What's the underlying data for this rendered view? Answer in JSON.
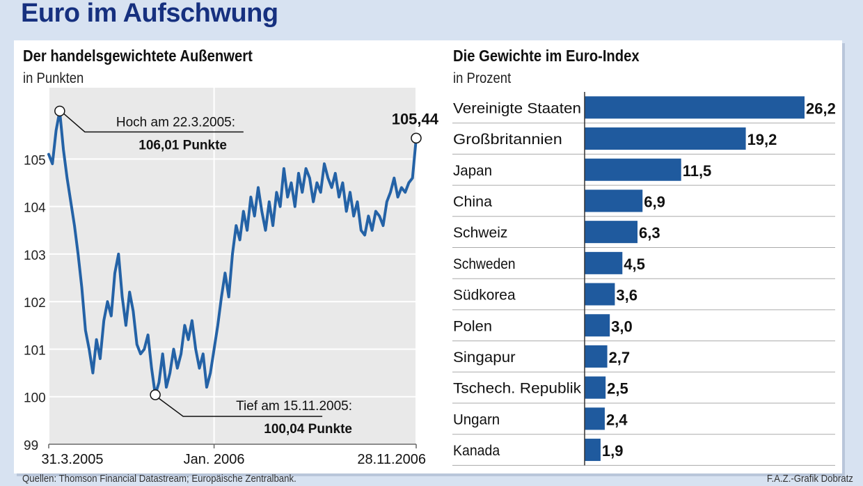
{
  "header": {
    "title": "Euro im Aufschwung"
  },
  "chart_data": [
    {
      "type": "line",
      "title": "Der handelsgewichtete Außenwert",
      "unit": "in Punkten",
      "ylim": [
        99,
        106.5
      ],
      "yticks": [
        "99",
        "100",
        "101",
        "102",
        "103",
        "104",
        "105"
      ],
      "xticks": [
        "31.3.2005",
        "Jan. 2006",
        "28.11.2006"
      ],
      "series": [
        {
          "name": "Außenwert",
          "x": [
            0,
            1,
            2,
            3,
            4,
            5,
            6,
            7,
            8,
            9,
            10,
            11,
            12,
            13,
            14,
            15,
            16,
            17,
            18,
            19,
            20,
            21,
            22,
            23,
            24,
            25,
            26,
            27,
            28,
            29,
            30,
            31,
            32,
            33,
            34,
            35,
            36,
            37,
            38,
            39,
            40,
            41,
            42,
            43,
            44,
            45,
            46,
            47,
            48,
            49,
            50,
            51,
            52,
            53,
            54,
            55,
            56,
            57,
            58,
            59,
            60,
            61,
            62,
            63,
            64,
            65,
            66,
            67,
            68,
            69,
            70,
            71,
            72,
            73,
            74,
            75,
            76,
            77,
            78,
            79,
            80,
            81,
            82,
            83,
            84,
            85,
            86,
            87,
            88,
            89,
            90,
            91,
            92,
            93,
            94,
            95,
            96,
            97,
            98,
            99,
            100
          ],
          "values": [
            105.1,
            104.9,
            105.6,
            106.01,
            105.2,
            104.6,
            104.1,
            103.6,
            103.0,
            102.3,
            101.4,
            101.0,
            100.5,
            101.2,
            100.8,
            101.6,
            102.0,
            101.7,
            102.6,
            103.0,
            102.1,
            101.5,
            102.2,
            101.8,
            101.1,
            100.9,
            101.0,
            101.3,
            100.6,
            100.04,
            100.3,
            100.9,
            100.2,
            100.5,
            101.0,
            100.6,
            100.9,
            101.5,
            101.2,
            101.6,
            101.0,
            100.6,
            100.9,
            100.2,
            100.5,
            101.0,
            101.5,
            102.1,
            102.6,
            102.1,
            103.0,
            103.6,
            103.3,
            103.9,
            103.5,
            104.2,
            103.8,
            104.4,
            103.9,
            103.5,
            104.1,
            103.6,
            104.3,
            104.0,
            104.8,
            104.2,
            104.5,
            104.0,
            104.7,
            104.3,
            104.8,
            104.6,
            104.1,
            104.5,
            104.3,
            104.9,
            104.6,
            104.4,
            104.7,
            104.2,
            104.5,
            103.9,
            104.3,
            103.8,
            104.1,
            103.5,
            103.4,
            103.8,
            103.5,
            103.9,
            103.8,
            103.6,
            104.1,
            104.3,
            104.6,
            104.2,
            104.4,
            104.3,
            104.5,
            104.6,
            105.44
          ]
        }
      ],
      "annotations": {
        "high": {
          "label": "Hoch am 22.3.2005:",
          "value_label": "106,01 Punkte",
          "x": 3,
          "y": 106.01
        },
        "low": {
          "label": "Tief am 15.11.2005:",
          "value_label": "100,04 Punkte",
          "x": 29,
          "y": 100.04
        },
        "last": {
          "value_label": "105,44",
          "x": 100,
          "y": 105.44
        }
      },
      "colors": {
        "line": "#2462a6",
        "grid": "#ffffff",
        "plot_bg": "#e9e9e9"
      }
    },
    {
      "type": "bar",
      "title": "Die Gewichte im Euro-Index",
      "unit": "in Prozent",
      "categories": [
        "Vereinigte Staaten",
        "Großbritannien",
        "Japan",
        "China",
        "Schweiz",
        "Schweden",
        "Südkorea",
        "Polen",
        "Singapur",
        "Tschech. Republik",
        "Ungarn",
        "Kanada"
      ],
      "values": [
        26.2,
        19.2,
        11.5,
        6.9,
        6.3,
        4.5,
        3.6,
        3.0,
        2.7,
        2.5,
        2.4,
        1.9
      ],
      "value_labels": [
        "26,2",
        "19,2",
        "11,5",
        "6,9",
        "6,3",
        "4,5",
        "3,6",
        "3,0",
        "2,7",
        "2,5",
        "2,4",
        "1,9"
      ],
      "xlim": [
        0,
        26.2
      ],
      "colors": {
        "bar": "#1f5a9e",
        "divider": "#aaaaaa"
      }
    }
  ],
  "footer": {
    "sources": "Quellen: Thomson Financial Datastream; Europäische Zentralbank.",
    "credit": "F.A.Z.-Grafik Dobratz"
  }
}
